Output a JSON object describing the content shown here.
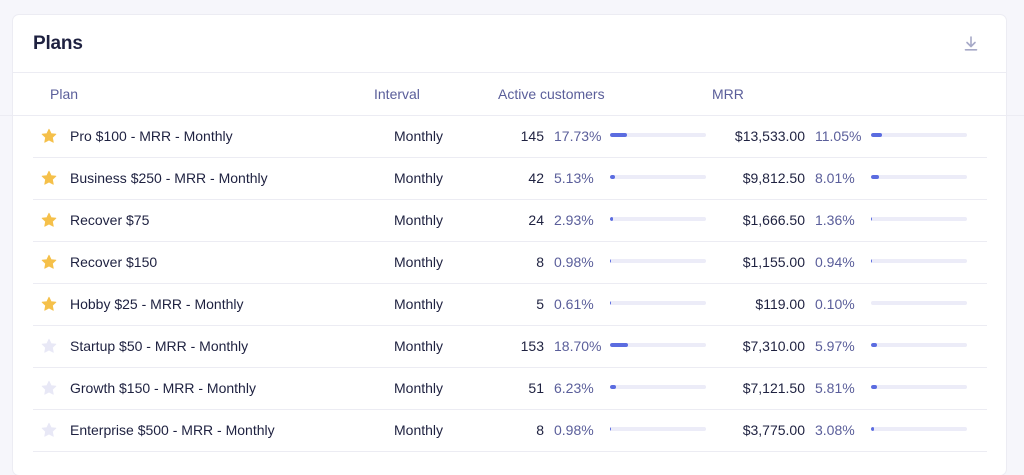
{
  "card": {
    "title": "Plans"
  },
  "columns": {
    "plan": "Plan",
    "interval": "Interval",
    "active_customers": "Active customers",
    "mrr": "MRR"
  },
  "colors": {
    "star_active": "#f5c04a",
    "star_inactive": "#e8e8f6",
    "bar_fill": "#5b6ce0",
    "bar_track": "#ececf8"
  },
  "rows": [
    {
      "starred": true,
      "plan": "Pro $100 - MRR - Monthly",
      "interval": "Monthly",
      "customers": "145",
      "customers_pct": "17.73%",
      "customers_frac": 0.1773,
      "mrr": "$13,533.00",
      "mrr_pct": "11.05%",
      "mrr_frac": 0.1105
    },
    {
      "starred": true,
      "plan": "Business $250 - MRR - Monthly",
      "interval": "Monthly",
      "customers": "42",
      "customers_pct": "5.13%",
      "customers_frac": 0.0513,
      "mrr": "$9,812.50",
      "mrr_pct": "8.01%",
      "mrr_frac": 0.0801
    },
    {
      "starred": true,
      "plan": "Recover $75",
      "interval": "Monthly",
      "customers": "24",
      "customers_pct": "2.93%",
      "customers_frac": 0.0293,
      "mrr": "$1,666.50",
      "mrr_pct": "1.36%",
      "mrr_frac": 0.0136
    },
    {
      "starred": true,
      "plan": "Recover $150",
      "interval": "Monthly",
      "customers": "8",
      "customers_pct": "0.98%",
      "customers_frac": 0.0098,
      "mrr": "$1,155.00",
      "mrr_pct": "0.94%",
      "mrr_frac": 0.0094
    },
    {
      "starred": true,
      "plan": "Hobby $25 - MRR - Monthly",
      "interval": "Monthly",
      "customers": "5",
      "customers_pct": "0.61%",
      "customers_frac": 0.0061,
      "mrr": "$119.00",
      "mrr_pct": "0.10%",
      "mrr_frac": 0.001
    },
    {
      "starred": false,
      "plan": "Startup $50 - MRR - Monthly",
      "interval": "Monthly",
      "customers": "153",
      "customers_pct": "18.70%",
      "customers_frac": 0.187,
      "mrr": "$7,310.00",
      "mrr_pct": "5.97%",
      "mrr_frac": 0.0597
    },
    {
      "starred": false,
      "plan": "Growth $150 - MRR - Monthly",
      "interval": "Monthly",
      "customers": "51",
      "customers_pct": "6.23%",
      "customers_frac": 0.0623,
      "mrr": "$7,121.50",
      "mrr_pct": "5.81%",
      "mrr_frac": 0.0581
    },
    {
      "starred": false,
      "plan": "Enterprise $500 - MRR - Monthly",
      "interval": "Monthly",
      "customers": "8",
      "customers_pct": "0.98%",
      "customers_frac": 0.0098,
      "mrr": "$3,775.00",
      "mrr_pct": "3.08%",
      "mrr_frac": 0.0308
    }
  ]
}
